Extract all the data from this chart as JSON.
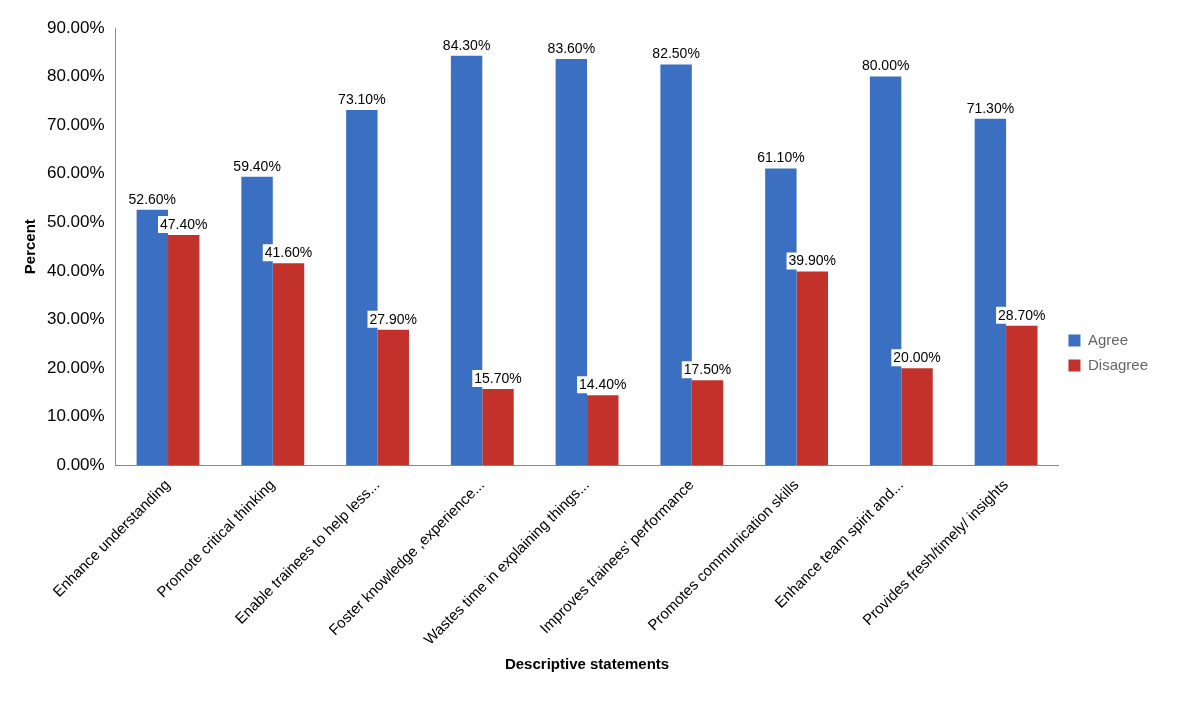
{
  "chart_data": {
    "type": "bar",
    "categories": [
      "Enhance understanding",
      "Promote critical thinking",
      "Enable trainees to help less...",
      "Foster knowledge ,experience...",
      "Wastes time in explaining things...",
      "Improves trainees’ performance",
      "Promotes communication skills",
      "Enhance team spirit and...",
      "Provides fresh/timely/ insights"
    ],
    "series": [
      {
        "name": "Agree",
        "color": "#3b6fc2",
        "values": [
          52.6,
          59.4,
          73.1,
          84.3,
          83.6,
          82.5,
          61.1,
          80.0,
          71.3
        ],
        "value_labels": [
          "52.60%",
          "59.40%",
          "73.10%",
          "84.30%",
          "83.60%",
          "82.50%",
          "61.10%",
          "80.00%",
          "71.30%"
        ]
      },
      {
        "name": "Disagree",
        "color": "#c2322b",
        "values": [
          47.4,
          41.6,
          27.9,
          15.7,
          14.4,
          17.5,
          39.9,
          20.0,
          28.7
        ],
        "value_labels": [
          "47.40%",
          "41.60%",
          "27.90%",
          "15.70%",
          "14.40%",
          "17.50%",
          "39.90%",
          "20.00%",
          "28.70%"
        ]
      }
    ],
    "xlabel": "Descriptive statements",
    "ylabel": "Percent",
    "ylim": [
      0,
      90
    ],
    "yticks": [
      {
        "value": 0,
        "label": "0.00%"
      },
      {
        "value": 10,
        "label": "10.00%"
      },
      {
        "value": 20,
        "label": "20.00%"
      },
      {
        "value": 30,
        "label": "30.00%"
      },
      {
        "value": 40,
        "label": "40.00%"
      },
      {
        "value": 50,
        "label": "50.00%"
      },
      {
        "value": 60,
        "label": "60.00%"
      },
      {
        "value": 70,
        "label": "70.00%"
      },
      {
        "value": 80,
        "label": "80.00%"
      },
      {
        "value": 90,
        "label": "90.00%"
      }
    ],
    "grid": false,
    "legend": "right"
  }
}
